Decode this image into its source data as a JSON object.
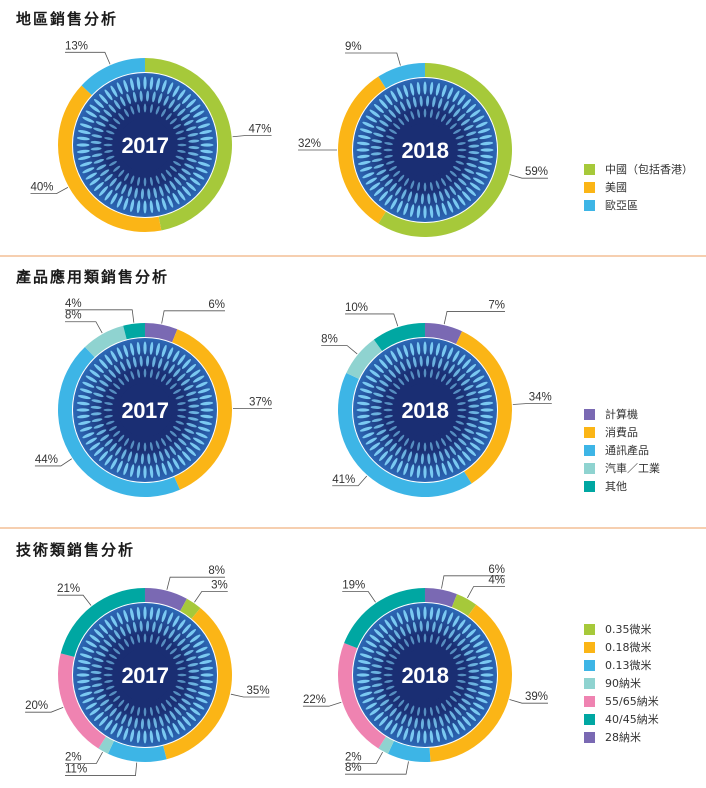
{
  "colors": {
    "green": "#a6c93a",
    "yellow": "#fbb516",
    "blue": "#3db5e6",
    "purple": "#7a69b3",
    "mint": "#8fd3d0",
    "teal": "#00a7a2",
    "pink": "#ef83b1",
    "inner_dark": "#1a2e73",
    "inner_light": "#2c68b6",
    "ray": "#7ed0f5"
  },
  "sections": [
    {
      "title": "地區銷售分析"
    },
    {
      "title": "產品應用類銷售分析"
    },
    {
      "title": "技術類銷售分析"
    }
  ],
  "legends": [
    {
      "items": [
        {
          "label": "中國（包括香港）",
          "color": "#a6c93a"
        },
        {
          "label": "美國",
          "color": "#fbb516"
        },
        {
          "label": "歐亞區",
          "color": "#3db5e6"
        }
      ]
    },
    {
      "items": [
        {
          "label": "計算機",
          "color": "#7a69b3"
        },
        {
          "label": "消費品",
          "color": "#fbb516"
        },
        {
          "label": "通訊產品",
          "color": "#3db5e6"
        },
        {
          "label": "汽車／工業",
          "color": "#8fd3d0"
        },
        {
          "label": "其他",
          "color": "#00a7a2"
        }
      ]
    },
    {
      "items": [
        {
          "label": "0.35微米",
          "color": "#a6c93a"
        },
        {
          "label": "0.18微米",
          "color": "#fbb516"
        },
        {
          "label": "0.13微米",
          "color": "#3db5e6"
        },
        {
          "label": "90納米",
          "color": "#8fd3d0"
        },
        {
          "label": "55/65納米",
          "color": "#ef83b1"
        },
        {
          "label": "40/45納米",
          "color": "#00a7a2"
        },
        {
          "label": "28納米",
          "color": "#7a69b3"
        }
      ]
    }
  ],
  "chart_data": [
    {
      "type": "pie",
      "section": "地區銷售分析",
      "year": "2017",
      "segments": [
        {
          "label": "中國（包括香港）",
          "value": 47,
          "text": "47%",
          "color": "#a6c93a"
        },
        {
          "label": "美國",
          "value": 40,
          "text": "40%",
          "color": "#fbb516"
        },
        {
          "label": "歐亞區",
          "value": 13,
          "text": "13%",
          "color": "#3db5e6"
        }
      ]
    },
    {
      "type": "pie",
      "section": "地區銷售分析",
      "year": "2018",
      "segments": [
        {
          "label": "中國（包括香港）",
          "value": 59,
          "text": "59%",
          "color": "#a6c93a"
        },
        {
          "label": "美國",
          "value": 32,
          "text": "32%",
          "color": "#fbb516"
        },
        {
          "label": "歐亞區",
          "value": 9,
          "text": "9%",
          "color": "#3db5e6"
        }
      ]
    },
    {
      "type": "pie",
      "section": "產品應用類銷售分析",
      "year": "2017",
      "segments": [
        {
          "label": "計算機",
          "value": 6,
          "text": "6%",
          "color": "#7a69b3"
        },
        {
          "label": "消費品",
          "value": 37,
          "text": "37%",
          "color": "#fbb516"
        },
        {
          "label": "通訊產品",
          "value": 44,
          "text": "44%",
          "color": "#3db5e6"
        },
        {
          "label": "汽車／工業",
          "value": 8,
          "text": "8%",
          "color": "#8fd3d0"
        },
        {
          "label": "其他",
          "value": 4,
          "text": "4%",
          "color": "#00a7a2"
        }
      ]
    },
    {
      "type": "pie",
      "section": "產品應用類銷售分析",
      "year": "2018",
      "segments": [
        {
          "label": "計算機",
          "value": 7,
          "text": "7%",
          "color": "#7a69b3"
        },
        {
          "label": "消費品",
          "value": 34,
          "text": "34%",
          "color": "#fbb516"
        },
        {
          "label": "通訊產品",
          "value": 41,
          "text": "41%",
          "color": "#3db5e6"
        },
        {
          "label": "汽車／工業",
          "value": 8,
          "text": "8%",
          "color": "#8fd3d0"
        },
        {
          "label": "其他",
          "value": 10,
          "text": "10%",
          "color": "#00a7a2"
        }
      ]
    },
    {
      "type": "pie",
      "section": "技術類銷售分析",
      "year": "2017",
      "segments": [
        {
          "label": "28納米",
          "value": 8,
          "text": "8%",
          "color": "#7a69b3"
        },
        {
          "label": "0.35微米",
          "value": 3,
          "text": "3%",
          "color": "#a6c93a"
        },
        {
          "label": "0.18微米",
          "value": 35,
          "text": "35%",
          "color": "#fbb516"
        },
        {
          "label": "0.13微米",
          "value": 11,
          "text": "11%",
          "color": "#3db5e6"
        },
        {
          "label": "90納米",
          "value": 2,
          "text": "2%",
          "color": "#8fd3d0"
        },
        {
          "label": "55/65納米",
          "value": 20,
          "text": "20%",
          "color": "#ef83b1"
        },
        {
          "label": "40/45納米",
          "value": 21,
          "text": "21%",
          "color": "#00a7a2"
        }
      ]
    },
    {
      "type": "pie",
      "section": "技術類銷售分析",
      "year": "2018",
      "segments": [
        {
          "label": "28納米",
          "value": 6,
          "text": "6%",
          "color": "#7a69b3"
        },
        {
          "label": "0.35微米",
          "value": 4,
          "text": "4%",
          "color": "#a6c93a"
        },
        {
          "label": "0.18微米",
          "value": 39,
          "text": "39%",
          "color": "#fbb516"
        },
        {
          "label": "0.13微米",
          "value": 8,
          "text": "8%",
          "color": "#3db5e6"
        },
        {
          "label": "90納米",
          "value": 2,
          "text": "2%",
          "color": "#8fd3d0"
        },
        {
          "label": "55/65納米",
          "value": 22,
          "text": "22%",
          "color": "#ef83b1"
        },
        {
          "label": "40/45納米",
          "value": 19,
          "text": "19%",
          "color": "#00a7a2"
        }
      ]
    }
  ]
}
